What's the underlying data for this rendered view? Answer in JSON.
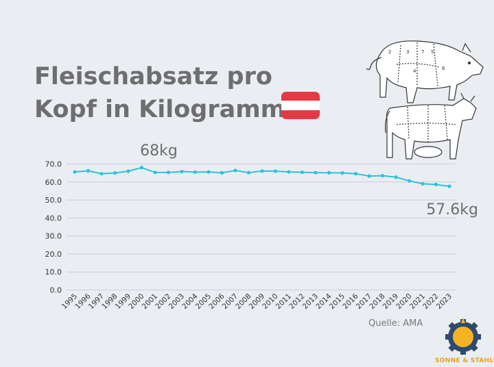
{
  "title_line1": "Fleischabsatz pro",
  "title_line2": "Kopf in Kilogramm",
  "flag_colors": [
    "#e63946",
    "#ffffff",
    "#e63946"
  ],
  "source": "Quelle: AMA",
  "logo": {
    "icon": "sun-gear-logo-icon",
    "text": "SONNE & STAHL"
  },
  "illustration": {
    "icons": [
      "pig-butcher-cuts-icon",
      "cow-butcher-cuts-icon"
    ],
    "pig_cut_numbers": [
      "2",
      "3",
      "7",
      "5",
      "4",
      "6"
    ]
  },
  "chart_data": {
    "type": "line",
    "color": "#2bc4d6",
    "x": [
      "1995",
      "1996",
      "1997",
      "1998",
      "1999",
      "2000",
      "2001",
      "2002",
      "2003",
      "2004",
      "2005",
      "2006",
      "2007",
      "2008",
      "2009",
      "2010",
      "2011",
      "2012",
      "2013",
      "2014",
      "2015",
      "2016",
      "2017",
      "2018",
      "2019",
      "2020",
      "2021",
      "2022",
      "2023"
    ],
    "values": [
      65.6,
      66.2,
      64.6,
      65.0,
      66.0,
      68.0,
      65.3,
      65.3,
      65.8,
      65.5,
      65.6,
      65.1,
      66.4,
      65.2,
      66.1,
      66.0,
      65.6,
      65.4,
      65.2,
      65.1,
      65.0,
      64.6,
      63.3,
      63.5,
      62.7,
      60.6,
      59.0,
      58.6,
      57.6
    ],
    "yticks": [
      "0.0",
      "10.0",
      "20.0",
      "30.0",
      "40.0",
      "50.0",
      "60.0",
      "70.0"
    ],
    "ylim": [
      0,
      70
    ],
    "grid": true,
    "annotations": [
      {
        "text": "68kg",
        "x_index": 5
      },
      {
        "text": "57.6kg",
        "x_index": 28
      }
    ]
  }
}
